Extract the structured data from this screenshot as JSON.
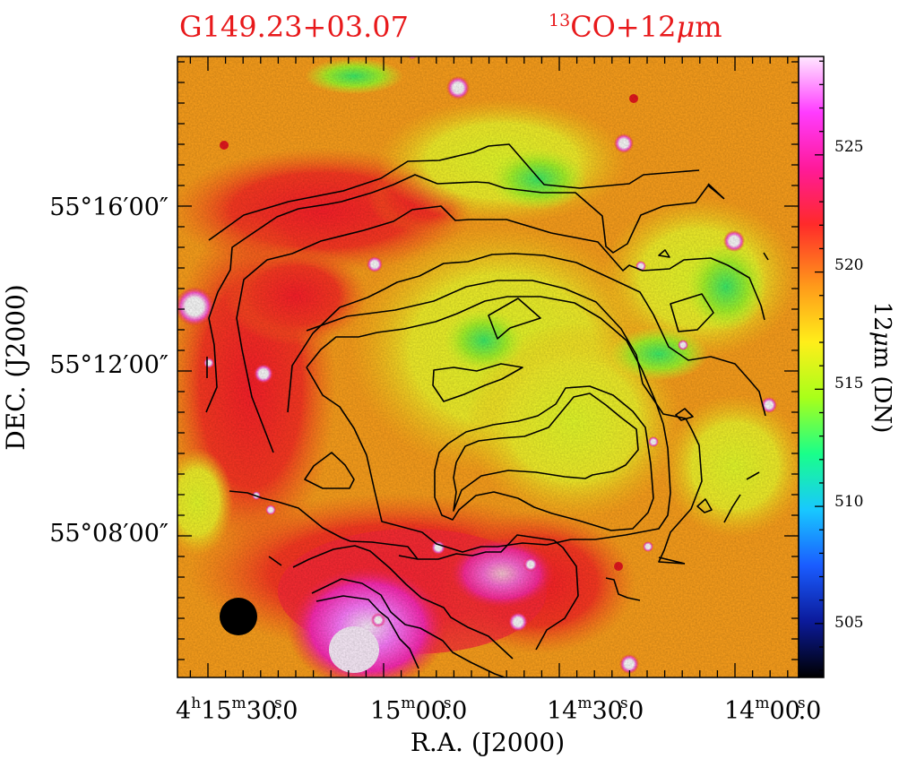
{
  "figure": {
    "source_name": "G149.23+03.07",
    "tracer": {
      "superscript": "13",
      "species": "CO+12",
      "mu": "μ",
      "unit_suffix": "m"
    },
    "xaxis": {
      "label": "R.A. (J2000)",
      "ticks": [
        {
          "h": "4",
          "hsup": "h",
          "m": "15",
          "msup": "m",
          "s": "30",
          "ssup": "s",
          "frac": ".0"
        },
        {
          "h": "",
          "hsup": "",
          "m": "15",
          "msup": "m",
          "s": "00",
          "ssup": "s",
          "frac": ".0"
        },
        {
          "h": "",
          "hsup": "",
          "m": "14",
          "msup": "m",
          "s": "30",
          "ssup": "s",
          "frac": ".0"
        },
        {
          "h": "",
          "hsup": "",
          "m": "14",
          "msup": "m",
          "s": "00",
          "ssup": "s",
          "frac": ".0"
        }
      ]
    },
    "yaxis": {
      "label": "DEC. (J2000)",
      "ticks": [
        "55°16′00″",
        "55°12′00″",
        "55°08′00″"
      ]
    },
    "colorbar": {
      "label_prefix": "12",
      "label_mu": "μ",
      "label_suffix": "m (DN)",
      "ticks": [
        "525",
        "520",
        "515",
        "510",
        "505"
      ],
      "range": [
        502.7,
        529.2
      ],
      "colormap": [
        "#000000",
        "#0b1a9a",
        "#1a5cff",
        "#18c8ff",
        "#19ff8a",
        "#a8ff1a",
        "#ffee1a",
        "#ff9a1a",
        "#ff2a2a",
        "#ff1a9a",
        "#ff3cff",
        "#ffe8ff"
      ]
    },
    "beam": "filled circle, lower-left"
  }
}
